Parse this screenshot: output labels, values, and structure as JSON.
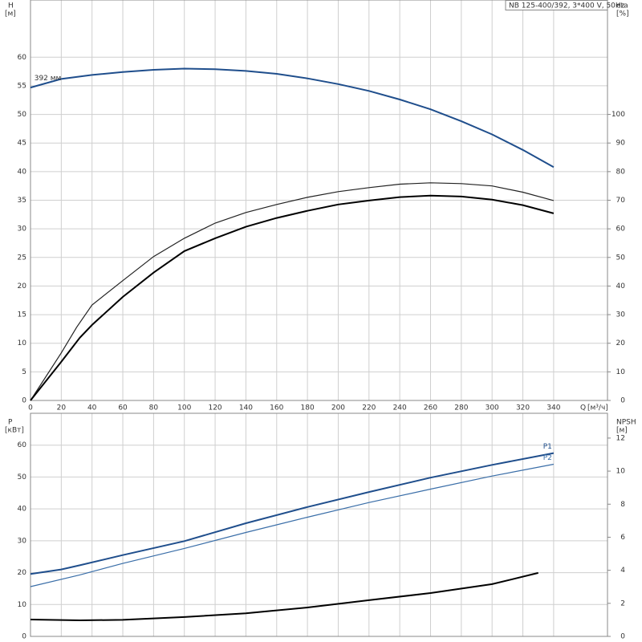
{
  "chart_data": [
    {
      "type": "line",
      "title": "NB 125-400/392, 3*400 V, 50Hz",
      "xlabel": "Q",
      "xunit": "[м³/ч]",
      "ylabel": "H",
      "yunit": "[м]",
      "y2label": "eta",
      "y2unit": "[%]",
      "xlim": [
        0,
        375
      ],
      "xticks": [
        0,
        20,
        40,
        60,
        80,
        100,
        120,
        140,
        160,
        180,
        200,
        220,
        240,
        260,
        280,
        300,
        320,
        340
      ],
      "ylim": [
        0,
        70
      ],
      "yticks": [
        0,
        5,
        10,
        15,
        20,
        25,
        30,
        35,
        40,
        45,
        50,
        55,
        60
      ],
      "y2lim": [
        0,
        140
      ],
      "y2ticks": [
        0,
        10,
        20,
        30,
        40,
        50,
        60,
        70,
        80,
        90,
        100
      ],
      "grid": true,
      "series": [
        {
          "name": "392 мм",
          "color": "#1f4e8c",
          "axis": "y",
          "x": [
            0,
            20,
            40,
            60,
            80,
            100,
            120,
            140,
            160,
            180,
            200,
            220,
            240,
            260,
            280,
            300,
            320,
            340
          ],
          "values": [
            54.7,
            56.2,
            56.9,
            57.4,
            57.8,
            58.0,
            57.9,
            57.6,
            57.1,
            56.3,
            55.3,
            54.1,
            52.6,
            50.9,
            48.8,
            46.5,
            43.8,
            40.8
          ]
        },
        {
          "color": "#222222",
          "axis": "y2",
          "x": [
            0,
            20,
            30,
            40,
            60,
            80,
            100,
            120,
            140,
            160,
            180,
            200,
            220,
            240,
            260,
            280,
            300,
            320,
            340
          ],
          "values": [
            0,
            16.6,
            25.6,
            33.4,
            41.9,
            50.3,
            56.7,
            62.0,
            65.7,
            68.5,
            71.0,
            73.0,
            74.4,
            75.6,
            76.1,
            75.8,
            75.0,
            72.8,
            69.9
          ]
        },
        {
          "color": "#000000",
          "axis": "y2",
          "x": [
            0,
            20,
            32,
            40,
            60,
            80,
            100,
            120,
            140,
            160,
            180,
            200,
            220,
            240,
            260,
            280,
            300,
            320,
            340
          ],
          "values": [
            0,
            13.5,
            21.9,
            26.4,
            36.2,
            44.7,
            52.2,
            56.7,
            60.7,
            63.8,
            66.3,
            68.5,
            69.9,
            71.1,
            71.6,
            71.3,
            70.2,
            68.3,
            65.4
          ]
        }
      ]
    },
    {
      "type": "line",
      "ylabel": "P",
      "yunit": "[кВт]",
      "y2label": "NPSH",
      "y2unit": "[м]",
      "xlim": [
        0,
        375
      ],
      "ylim": [
        0,
        70
      ],
      "yticks": [
        0,
        10,
        20,
        30,
        40,
        50,
        60
      ],
      "y2lim": [
        0,
        13.5
      ],
      "y2ticks": [
        0,
        2,
        4,
        6,
        8,
        10,
        12
      ],
      "grid": true,
      "series": [
        {
          "name": "P1",
          "color": "#1f4e8c",
          "axis": "y",
          "x": [
            0,
            20,
            32,
            60,
            100,
            140,
            180,
            220,
            260,
            300,
            340
          ],
          "values": [
            19.6,
            21.0,
            22.3,
            25.5,
            29.9,
            35.5,
            40.6,
            45.3,
            49.8,
            53.8,
            57.5
          ]
        },
        {
          "name": "P2",
          "color": "#3a6ea8",
          "axis": "y",
          "x": [
            0,
            32,
            60,
            100,
            140,
            180,
            220,
            260,
            300,
            340
          ],
          "values": [
            15.6,
            19.3,
            22.9,
            27.6,
            32.6,
            37.4,
            42.0,
            46.2,
            50.3,
            54.0
          ]
        },
        {
          "color": "#000000",
          "axis": "y2",
          "x": [
            0,
            32,
            60,
            100,
            140,
            180,
            220,
            260,
            300,
            330
          ],
          "values": [
            1.02,
            0.97,
            1.0,
            1.17,
            1.4,
            1.75,
            2.19,
            2.62,
            3.16,
            3.84
          ]
        }
      ]
    }
  ]
}
